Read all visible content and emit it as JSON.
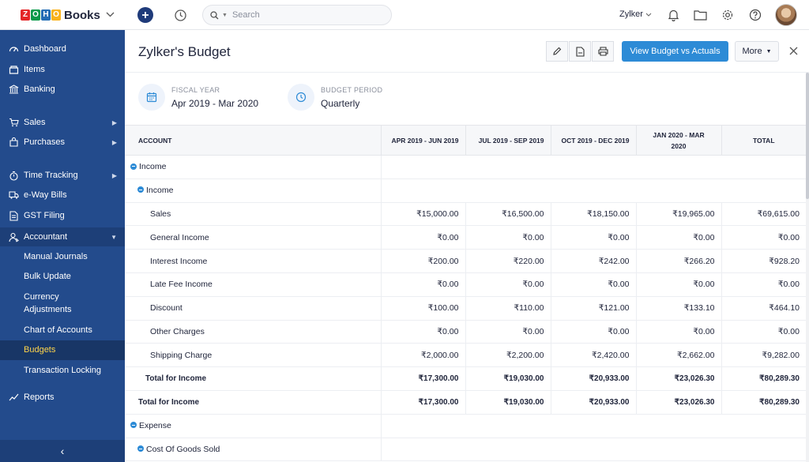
{
  "app": {
    "brand_letters": [
      "Z",
      "O",
      "H",
      "O"
    ],
    "brand_colors": [
      "#e42527",
      "#089949",
      "#226db4",
      "#f9b21d"
    ],
    "brand_name": "Books"
  },
  "topbar": {
    "search_placeholder": "Search",
    "org_name": "Zylker"
  },
  "sidebar": {
    "items": [
      {
        "label": "Dashboard",
        "icon": "dashboard-icon"
      },
      {
        "label": "Items",
        "icon": "items-icon"
      },
      {
        "label": "Banking",
        "icon": "bank-icon"
      },
      {
        "label": "Sales",
        "icon": "cart-icon"
      },
      {
        "label": "Purchases",
        "icon": "bag-icon"
      },
      {
        "label": "Time Tracking",
        "icon": "stopwatch-icon"
      },
      {
        "label": "e-Way Bills",
        "icon": "truck-icon"
      },
      {
        "label": "GST Filing",
        "icon": "document-icon"
      },
      {
        "label": "Accountant",
        "icon": "accountant-icon"
      },
      {
        "label": "Reports",
        "icon": "chart-icon"
      }
    ],
    "accountant_sub": [
      "Manual Journals",
      "Bulk Update",
      "Currency Adjustments",
      "Chart of Accounts",
      "Budgets",
      "Transaction Locking"
    ],
    "collapse_glyph": "‹"
  },
  "page": {
    "title": "Zylker's Budget",
    "primary_button": "View Budget vs Actuals",
    "more_button": "More"
  },
  "info": {
    "fiscal_year_label": "FISCAL YEAR",
    "fiscal_year_value": "Apr 2019 - Mar 2020",
    "budget_period_label": "BUDGET PERIOD",
    "budget_period_value": "Quarterly"
  },
  "table": {
    "headers": [
      "ACCOUNT",
      "APR 2019 - JUN 2019",
      "JUL 2019 - SEP 2019",
      "OCT 2019 - DEC 2019",
      "JAN 2020 - MAR 2020",
      "TOTAL"
    ],
    "groups": {
      "income_main": "Income",
      "income_sub": "Income",
      "expense_main": "Expense",
      "cogs_sub": "Cost Of Goods Sold"
    },
    "rows": [
      {
        "name": "Sales",
        "values": [
          "₹15,000.00",
          "₹16,500.00",
          "₹18,150.00",
          "₹19,965.00",
          "₹69,615.00"
        ]
      },
      {
        "name": "General Income",
        "values": [
          "₹0.00",
          "₹0.00",
          "₹0.00",
          "₹0.00",
          "₹0.00"
        ]
      },
      {
        "name": "Interest Income",
        "values": [
          "₹200.00",
          "₹220.00",
          "₹242.00",
          "₹266.20",
          "₹928.20"
        ]
      },
      {
        "name": "Late Fee Income",
        "values": [
          "₹0.00",
          "₹0.00",
          "₹0.00",
          "₹0.00",
          "₹0.00"
        ]
      },
      {
        "name": "Discount",
        "values": [
          "₹100.00",
          "₹110.00",
          "₹121.00",
          "₹133.10",
          "₹464.10"
        ]
      },
      {
        "name": "Other Charges",
        "values": [
          "₹0.00",
          "₹0.00",
          "₹0.00",
          "₹0.00",
          "₹0.00"
        ]
      },
      {
        "name": "Shipping Charge",
        "values": [
          "₹2,000.00",
          "₹2,200.00",
          "₹2,420.00",
          "₹2,662.00",
          "₹9,282.00"
        ]
      }
    ],
    "subtotal": {
      "name": "Total for Income",
      "values": [
        "₹17,300.00",
        "₹19,030.00",
        "₹20,933.00",
        "₹23,026.30",
        "₹80,289.30"
      ]
    },
    "grandtotal": {
      "name": "Total for Income",
      "values": [
        "₹17,300.00",
        "₹19,030.00",
        "₹20,933.00",
        "₹23,026.30",
        "₹80,289.30"
      ]
    }
  }
}
